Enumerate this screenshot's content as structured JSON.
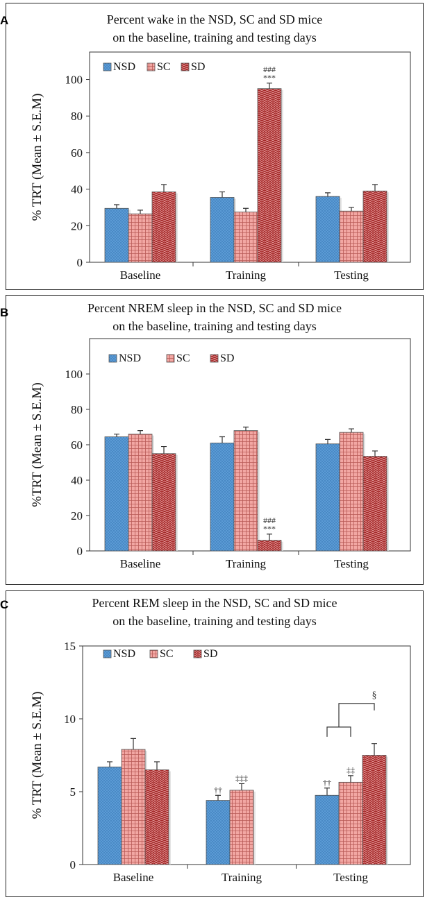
{
  "colors": {
    "NSD": "#5b9bd5",
    "SC": "#f2a7a3",
    "SD": "#a52a2a",
    "axis": "#333333"
  },
  "chart_data": [
    {
      "panel": "A",
      "type": "bar",
      "title_line1": "Percent wake in the NSD, SC and SD mice",
      "title_line2": "on the baseline, training and testing days",
      "ylabel": "% TRT (Mean ± S.E.M)",
      "xlabel": "",
      "categories": [
        "Baseline",
        "Training",
        "Testing"
      ],
      "ylim": [
        0,
        115
      ],
      "yticks": [
        0,
        20,
        40,
        60,
        80,
        100
      ],
      "legend_position": "top-left",
      "series": [
        {
          "name": "NSD",
          "values": [
            29.5,
            35.5,
            36
          ],
          "errors": [
            2,
            3,
            2
          ]
        },
        {
          "name": "SC",
          "values": [
            26.5,
            27.5,
            28
          ],
          "errors": [
            2,
            2,
            2
          ]
        },
        {
          "name": "SD",
          "values": [
            38.5,
            95,
            39
          ],
          "errors": [
            4,
            3,
            3.5
          ]
        }
      ],
      "annotations": [
        {
          "series": "SD",
          "category": "Training",
          "lines": [
            "###",
            "***"
          ]
        }
      ]
    },
    {
      "panel": "B",
      "type": "bar",
      "title_line1": "Percent NREM sleep in the NSD, SC and SD mice",
      "title_line2": "on the baseline, training and testing days",
      "ylabel": "%TRT (Mean ± S.E.M)",
      "xlabel": "",
      "categories": [
        "Baseline",
        "Training",
        "Testing"
      ],
      "ylim": [
        0,
        120
      ],
      "yticks": [
        0,
        20,
        40,
        60,
        80,
        100
      ],
      "legend_position": "top-left",
      "series": [
        {
          "name": "NSD",
          "values": [
            64.5,
            61,
            60.5
          ],
          "errors": [
            1.5,
            3.5,
            2.5
          ]
        },
        {
          "name": "SC",
          "values": [
            66,
            68,
            67
          ],
          "errors": [
            2,
            2,
            2
          ]
        },
        {
          "name": "SD",
          "values": [
            55,
            6,
            53.5
          ],
          "errors": [
            4,
            3.5,
            3
          ]
        }
      ],
      "annotations": [
        {
          "series": "SD",
          "category": "Training",
          "lines": [
            "###",
            "***"
          ]
        }
      ]
    },
    {
      "panel": "C",
      "type": "bar",
      "title_line1": "Percent REM sleep in the NSD, SC and SD mice",
      "title_line2": "on the baseline, training and testing days",
      "ylabel": "% TRT (Mean ± S.E.M)",
      "xlabel": "",
      "categories": [
        "Baseline",
        "Training",
        "Testing"
      ],
      "ylim": [
        0,
        15
      ],
      "yticks": [
        0,
        5,
        10,
        15
      ],
      "legend_position": "top-left",
      "series": [
        {
          "name": "NSD",
          "values": [
            6.7,
            4.4,
            4.75
          ],
          "errors": [
            0.35,
            0.35,
            0.5
          ]
        },
        {
          "name": "SC",
          "values": [
            7.9,
            5.1,
            5.65
          ],
          "errors": [
            0.75,
            0.45,
            0.45
          ]
        },
        {
          "name": "SD",
          "values": [
            6.5,
            null,
            7.5
          ],
          "errors": [
            0.55,
            null,
            0.8
          ]
        }
      ],
      "annotations": [
        {
          "series": "NSD",
          "category": "Training",
          "lines": [
            "††"
          ]
        },
        {
          "series": "SC",
          "category": "Training",
          "lines": [
            "‡‡‡"
          ]
        },
        {
          "series": "NSD",
          "category": "Testing",
          "lines": [
            "††"
          ]
        },
        {
          "series": "SC",
          "category": "Testing",
          "lines": [
            "‡‡"
          ]
        }
      ],
      "bracket": {
        "category": "Testing",
        "from": [
          "NSD",
          "SC"
        ],
        "to": "SD",
        "label": "§"
      }
    }
  ]
}
